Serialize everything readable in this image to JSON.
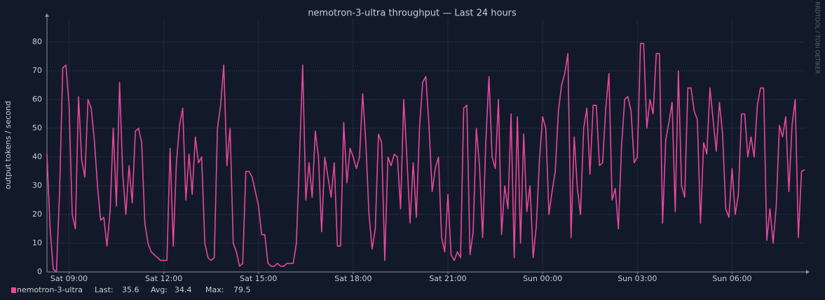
{
  "chart_data": {
    "type": "line",
    "title": "nemotron-3-ultra throughput — Last 24 hours",
    "y_label": "output tokens / second",
    "watermark": "RRDTOOL / TOBI OETIKER",
    "xlim": [
      8.3,
      32.3
    ],
    "ylim": [
      0,
      88
    ],
    "yticks": [
      0,
      10,
      20,
      30,
      40,
      50,
      60,
      70,
      80
    ],
    "xticks": [
      {
        "value": 9,
        "label": "Sat 09:00"
      },
      {
        "value": 12,
        "label": "Sat 12:00"
      },
      {
        "value": 15,
        "label": "Sat 15:00"
      },
      {
        "value": 18,
        "label": "Sat 18:00"
      },
      {
        "value": 21,
        "label": "Sat 21:00"
      },
      {
        "value": 24,
        "label": "Sun 00:00"
      },
      {
        "value": 27,
        "label": "Sun 03:00"
      },
      {
        "value": 30,
        "label": "Sun 06:00"
      }
    ],
    "grid": true,
    "x": [
      8.3,
      8.4,
      8.5,
      8.6,
      8.7,
      8.8,
      8.9,
      9,
      9.1,
      9.2,
      9.3,
      9.4,
      9.5,
      9.6,
      9.7,
      9.8,
      9.9,
      10,
      10.1,
      10.2,
      10.3,
      10.4,
      10.5,
      10.6,
      10.7,
      10.8,
      10.9,
      11,
      11.1,
      11.2,
      11.3,
      11.4,
      11.5,
      11.6,
      11.7,
      11.8,
      11.9,
      12,
      12.1,
      12.2,
      12.3,
      12.4,
      12.5,
      12.6,
      12.7,
      12.8,
      12.9,
      13,
      13.1,
      13.2,
      13.3,
      13.4,
      13.5,
      13.6,
      13.7,
      13.8,
      13.9,
      14,
      14.1,
      14.2,
      14.3,
      14.4,
      14.5,
      14.6,
      14.7,
      14.8,
      14.9,
      15,
      15.1,
      15.2,
      15.3,
      15.4,
      15.5,
      15.6,
      15.7,
      15.8,
      15.9,
      16,
      16.1,
      16.2,
      16.3,
      16.4,
      16.5,
      16.6,
      16.7,
      16.8,
      16.9,
      17,
      17.1,
      17.2,
      17.3,
      17.4,
      17.5,
      17.6,
      17.7,
      17.8,
      17.9,
      18,
      18.1,
      18.2,
      18.3,
      18.4,
      18.5,
      18.6,
      18.7,
      18.8,
      18.9,
      19,
      19.1,
      19.2,
      19.3,
      19.4,
      19.5,
      19.6,
      19.7,
      19.8,
      19.9,
      20,
      20.1,
      20.2,
      20.3,
      20.4,
      20.5,
      20.6,
      20.7,
      20.8,
      20.9,
      21,
      21.1,
      21.2,
      21.3,
      21.4,
      21.5,
      21.6,
      21.7,
      21.8,
      21.9,
      22,
      22.1,
      22.2,
      22.3,
      22.4,
      22.5,
      22.6,
      22.7,
      22.8,
      22.9,
      23,
      23.1,
      23.2,
      23.3,
      23.4,
      23.5,
      23.6,
      23.7,
      23.8,
      23.9,
      24,
      24.1,
      24.2,
      24.3,
      24.4,
      24.5,
      24.6,
      24.7,
      24.8,
      24.9,
      25,
      25.1,
      25.2,
      25.3,
      25.4,
      25.5,
      25.6,
      25.7,
      25.8,
      25.9,
      26,
      26.1,
      26.2,
      26.3,
      26.4,
      26.5,
      26.6,
      26.7,
      26.8,
      26.9,
      27,
      27.1,
      27.2,
      27.3,
      27.4,
      27.5,
      27.6,
      27.7,
      27.8,
      27.9,
      28,
      28.1,
      28.2,
      28.3,
      28.4,
      28.5,
      28.6,
      28.7,
      28.8,
      28.9,
      29,
      29.1,
      29.2,
      29.3,
      29.4,
      29.5,
      29.6,
      29.7,
      29.8,
      29.9,
      30,
      30.1,
      30.2,
      30.3,
      30.4,
      30.5,
      30.6,
      30.7,
      30.8,
      30.9,
      31,
      31.1,
      31.2,
      31.3,
      31.4,
      31.5,
      31.6,
      31.7,
      31.8,
      31.9,
      32,
      32.1,
      32.2,
      32.3
    ],
    "series": [
      {
        "name": "nemotron-3-ultra",
        "color": "#e8479b",
        "values": [
          41,
          15,
          1,
          0,
          28,
          71,
          72,
          58,
          20,
          15,
          61,
          39,
          33,
          60,
          57,
          46,
          30,
          18,
          19,
          9,
          21,
          50,
          23,
          66,
          34,
          20,
          37,
          24,
          49,
          50,
          45,
          17,
          10,
          7,
          6,
          5,
          4,
          4,
          4,
          43,
          9,
          38,
          51,
          57,
          25,
          41,
          27,
          47,
          38,
          40,
          10,
          5,
          4,
          5,
          50,
          58,
          72,
          37,
          50,
          10,
          7,
          2,
          3,
          35,
          35,
          33,
          28,
          23,
          13,
          13,
          3,
          2,
          2,
          3,
          2,
          2,
          3,
          3,
          3,
          10,
          40,
          72,
          25,
          38,
          26,
          49,
          40,
          14,
          40,
          33,
          26,
          38,
          9,
          9,
          52,
          31,
          43,
          40,
          36,
          40,
          62,
          45,
          20,
          8,
          15,
          48,
          45,
          4,
          40,
          37,
          41,
          40,
          22,
          60,
          40,
          17,
          38,
          19,
          50,
          66,
          68,
          51,
          28,
          36,
          40,
          12,
          7,
          27,
          6,
          4,
          7,
          5,
          57,
          58,
          6,
          14,
          50,
          37,
          12,
          45,
          68,
          40,
          36,
          60,
          13,
          30,
          22,
          55,
          5,
          54,
          10,
          48,
          21,
          30,
          5,
          16,
          39,
          54,
          50,
          20,
          28,
          35,
          56,
          65,
          69,
          76,
          12,
          47,
          29,
          20,
          50,
          57,
          34,
          58,
          58,
          37,
          38,
          57,
          69,
          25,
          29,
          15,
          44,
          60,
          61,
          56,
          38,
          40,
          79.5,
          79.5,
          50,
          60,
          55,
          76,
          76,
          17,
          46,
          52,
          59,
          21,
          70,
          30,
          26,
          64,
          64,
          56,
          53,
          17,
          45,
          41,
          64,
          53,
          42,
          59,
          48,
          22,
          19,
          36,
          20,
          27,
          55,
          55,
          40,
          47,
          40,
          58,
          64,
          64,
          11,
          22,
          10,
          23,
          51,
          47,
          54,
          28,
          51,
          60,
          12,
          35,
          35.6
        ]
      }
    ],
    "legend": {
      "last_label": "Last:",
      "last": 35.6,
      "avg_label": "Avg:",
      "avg": 34.4,
      "max_label": "Max:",
      "max": 79.5
    }
  }
}
